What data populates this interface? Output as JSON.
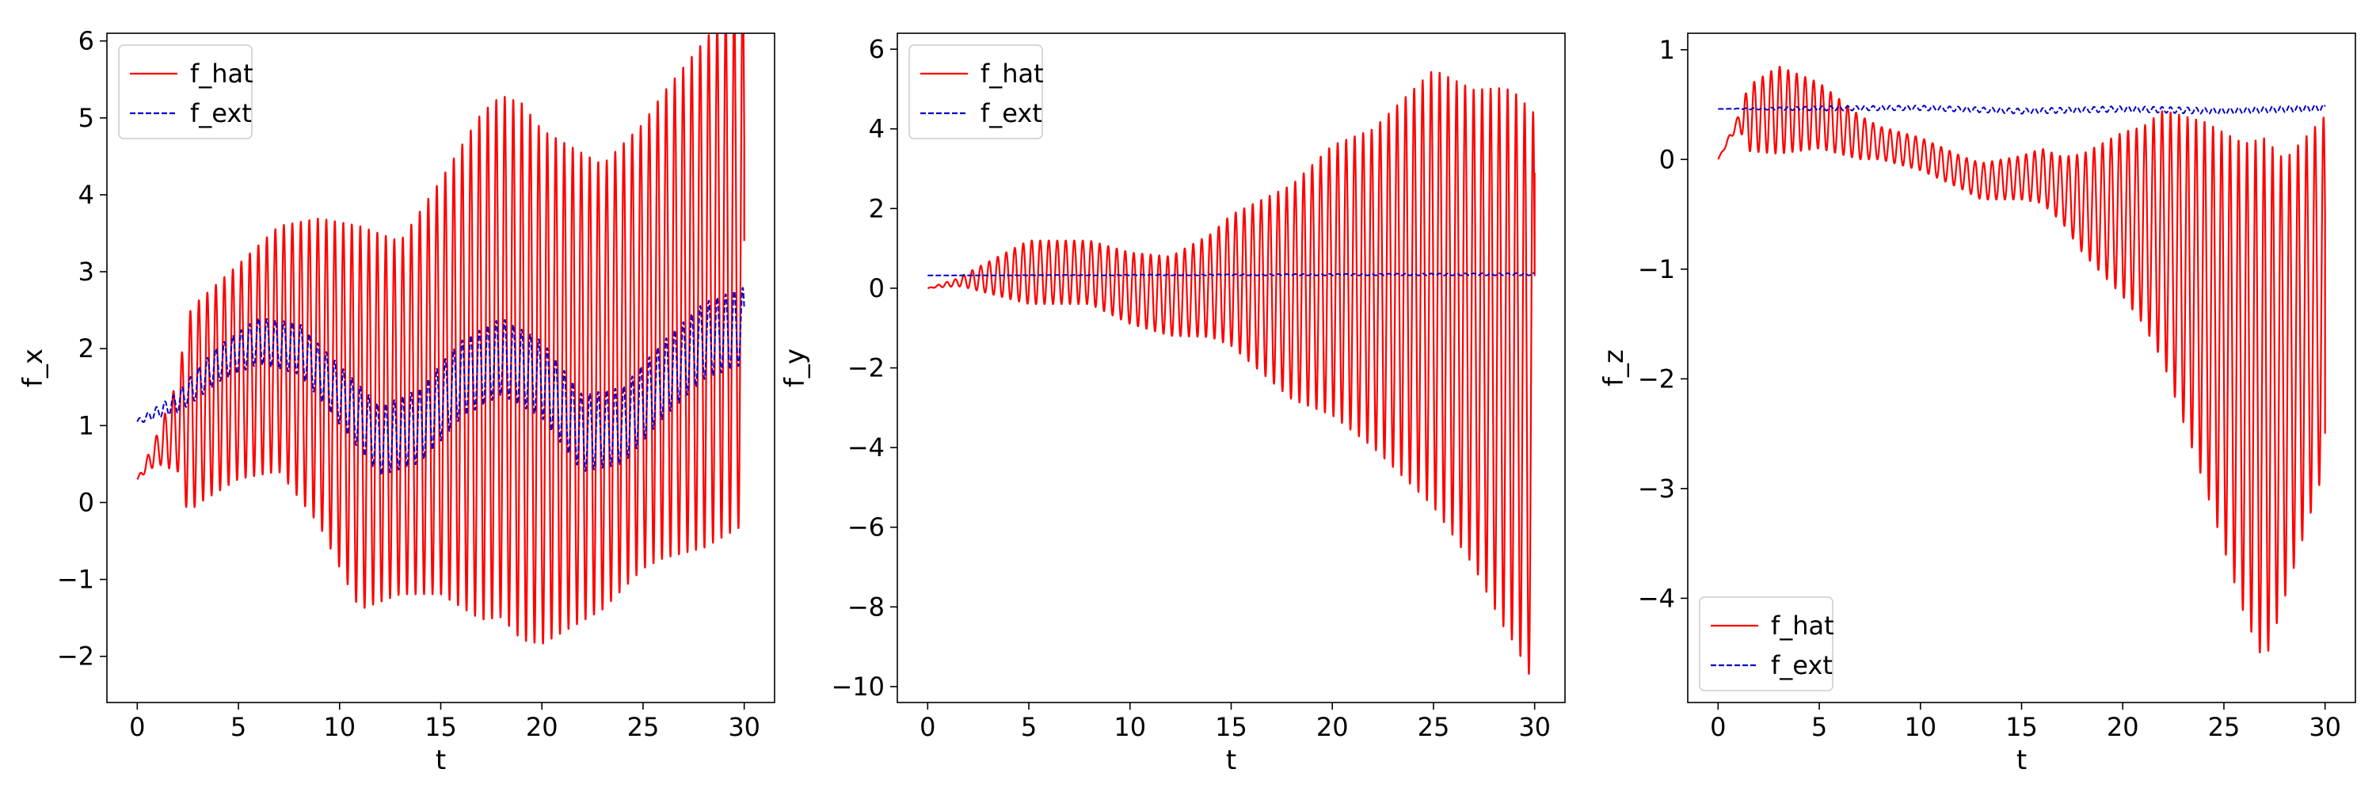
{
  "chart_data": [
    {
      "type": "line",
      "xlabel": "t",
      "ylabel": "f_x",
      "xlim": [
        -1.5,
        31.5
      ],
      "ylim": [
        -2.6,
        6.1
      ],
      "xticks": [
        0,
        5,
        10,
        15,
        20,
        25,
        30
      ],
      "yticks": [
        -2,
        -1,
        0,
        1,
        2,
        3,
        4,
        5,
        6
      ],
      "legend": "top-left",
      "series": [
        {
          "name": "f_hat",
          "color": "#ff0000",
          "style": "solid",
          "osc_period": 0.42,
          "center": [
            [
              0,
              0.3
            ],
            [
              1,
              0.7
            ],
            [
              2,
              1.0
            ],
            [
              3,
              1.3
            ],
            [
              5,
              1.7
            ],
            [
              7,
              2.0
            ],
            [
              9,
              1.7
            ],
            [
              11,
              1.1
            ],
            [
              13,
              1.1
            ],
            [
              15,
              1.5
            ],
            [
              18,
              1.9
            ],
            [
              20,
              1.5
            ],
            [
              23,
              1.5
            ],
            [
              26,
              2.3
            ],
            [
              28,
              2.7
            ],
            [
              30,
              3.2
            ]
          ],
          "amplitude": [
            [
              0,
              0.0
            ],
            [
              1,
              0.2
            ],
            [
              2,
              0.6
            ],
            [
              2.5,
              1.3
            ],
            [
              5,
              1.4
            ],
            [
              7,
              1.6
            ],
            [
              9,
              2.0
            ],
            [
              11,
              2.5
            ],
            [
              13,
              2.3
            ],
            [
              15,
              2.7
            ],
            [
              17,
              3.3
            ],
            [
              19,
              3.5
            ],
            [
              21,
              3.2
            ],
            [
              23,
              2.9
            ],
            [
              25,
              2.9
            ],
            [
              28,
              3.3
            ],
            [
              30,
              3.5
            ]
          ],
          "end": [
            30,
            3.4
          ]
        },
        {
          "name": "f_ext",
          "color": "#0000cc",
          "style": "dashed",
          "osc_period": 0.42,
          "center": [
            [
              0,
              1.05
            ],
            [
              2,
              1.3
            ],
            [
              4,
              1.8
            ],
            [
              6,
              2.1
            ],
            [
              8,
              2.0
            ],
            [
              10,
              1.4
            ],
            [
              12,
              0.8
            ],
            [
              14,
              1.0
            ],
            [
              16,
              1.6
            ],
            [
              18,
              1.9
            ],
            [
              20,
              1.6
            ],
            [
              22,
              0.9
            ],
            [
              24,
              1.0
            ],
            [
              26,
              1.6
            ],
            [
              28,
              2.1
            ],
            [
              30,
              2.3
            ]
          ],
          "amplitude": [
            [
              0,
              0.03
            ],
            [
              1.5,
              0.1
            ],
            [
              3,
              0.2
            ],
            [
              6,
              0.3
            ],
            [
              9,
              0.35
            ],
            [
              12,
              0.45
            ],
            [
              15,
              0.5
            ],
            [
              18,
              0.5
            ],
            [
              21,
              0.5
            ],
            [
              24,
              0.5
            ],
            [
              27,
              0.5
            ],
            [
              30,
              0.5
            ]
          ]
        }
      ]
    },
    {
      "type": "line",
      "xlabel": "t",
      "ylabel": "f_y",
      "xlim": [
        -1.5,
        31.5
      ],
      "ylim": [
        -10.4,
        6.4
      ],
      "xticks": [
        0,
        5,
        10,
        15,
        20,
        25,
        30
      ],
      "yticks": [
        -10,
        -8,
        -6,
        -4,
        -2,
        0,
        2,
        4,
        6
      ],
      "legend": "top-left",
      "series": [
        {
          "name": "f_hat",
          "color": "#ff0000",
          "style": "solid",
          "osc_period": 0.42,
          "center": [
            [
              0,
              0.0
            ],
            [
              2,
              0.2
            ],
            [
              5,
              0.4
            ],
            [
              8,
              0.4
            ],
            [
              10,
              0.0
            ],
            [
              12,
              -0.2
            ],
            [
              15,
              0.2
            ],
            [
              18,
              -0.1
            ],
            [
              20,
              0.2
            ],
            [
              22,
              0.0
            ],
            [
              25,
              0.0
            ],
            [
              27,
              -1.0
            ],
            [
              29,
              -2.0
            ],
            [
              30,
              -2.8
            ]
          ],
          "amplitude": [
            [
              0,
              0.0
            ],
            [
              1.5,
              0.1
            ],
            [
              3,
              0.4
            ],
            [
              5,
              0.8
            ],
            [
              8,
              0.8
            ],
            [
              10,
              0.9
            ],
            [
              12,
              1.0
            ],
            [
              14,
              1.3
            ],
            [
              16,
              2.0
            ],
            [
              18,
              2.7
            ],
            [
              20,
              3.4
            ],
            [
              22,
              4.0
            ],
            [
              24,
              5.0
            ],
            [
              25,
              5.5
            ],
            [
              27,
              6.0
            ],
            [
              28.5,
              6.8
            ],
            [
              30,
              7.2
            ]
          ],
          "end": [
            30,
            2.9
          ]
        },
        {
          "name": "f_ext",
          "color": "#0000cc",
          "style": "dashed",
          "osc_period": 0.42,
          "center": [
            [
              0,
              0.32
            ],
            [
              30,
              0.35
            ]
          ],
          "amplitude": [
            [
              0,
              0.0
            ],
            [
              30,
              0.03
            ]
          ]
        }
      ]
    },
    {
      "type": "line",
      "xlabel": "t",
      "ylabel": "f_z",
      "xlim": [
        -1.5,
        31.5
      ],
      "ylim": [
        -4.95,
        1.15
      ],
      "xticks": [
        0,
        5,
        10,
        15,
        20,
        25,
        30
      ],
      "yticks": [
        -4,
        -3,
        -2,
        -1,
        0,
        1
      ],
      "legend": "bottom-left",
      "series": [
        {
          "name": "f_hat",
          "color": "#ff0000",
          "style": "solid",
          "osc_period": 0.42,
          "center": [
            [
              0,
              0.0
            ],
            [
              1,
              0.35
            ],
            [
              3,
              0.45
            ],
            [
              5,
              0.4
            ],
            [
              7,
              0.2
            ],
            [
              10,
              0.05
            ],
            [
              13,
              -0.2
            ],
            [
              16,
              -0.15
            ],
            [
              18,
              -0.4
            ],
            [
              20,
              -0.5
            ],
            [
              22,
              -0.7
            ],
            [
              24,
              -1.3
            ],
            [
              26,
              -2.0
            ],
            [
              27,
              -2.2
            ],
            [
              28,
              -2.0
            ],
            [
              29,
              -1.6
            ],
            [
              30,
              -1.2
            ]
          ],
          "amplitude": [
            [
              0,
              0.0
            ],
            [
              1,
              0.05
            ],
            [
              1.5,
              0.3
            ],
            [
              3,
              0.4
            ],
            [
              5,
              0.3
            ],
            [
              8,
              0.15
            ],
            [
              12,
              0.15
            ],
            [
              15,
              0.2
            ],
            [
              17,
              0.3
            ],
            [
              19,
              0.6
            ],
            [
              21,
              0.9
            ],
            [
              23,
              1.4
            ],
            [
              25,
              1.9
            ],
            [
              27,
              2.4
            ],
            [
              28,
              2.0
            ],
            [
              30,
              1.6
            ]
          ],
          "end": [
            30,
            -2.5
          ]
        },
        {
          "name": "f_ext",
          "color": "#0000cc",
          "style": "dashed",
          "osc_period": 0.42,
          "center": [
            [
              0,
              0.46
            ],
            [
              10,
              0.47
            ],
            [
              15,
              0.44
            ],
            [
              20,
              0.46
            ],
            [
              25,
              0.44
            ],
            [
              30,
              0.47
            ]
          ],
          "amplitude": [
            [
              0,
              0.0
            ],
            [
              5,
              0.02
            ],
            [
              30,
              0.03
            ]
          ]
        }
      ]
    }
  ]
}
